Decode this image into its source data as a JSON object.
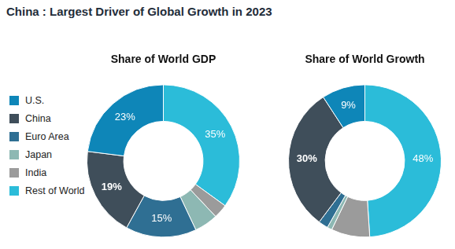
{
  "title": "China : Largest Driver of Global Growth in 2023",
  "chart_data": [
    {
      "type": "doughnut",
      "title": "Share of World GDP",
      "categories": [
        "U.S.",
        "China",
        "Euro Area",
        "Japan",
        "India",
        "Rest of World"
      ],
      "values": [
        23,
        19,
        15,
        5,
        3,
        35
      ],
      "value_labels": [
        "23%",
        "19%",
        "15%",
        null,
        null,
        "35%"
      ],
      "colors": [
        "#0e86b8",
        "#3f4e5a",
        "#2f6f93",
        "#8db8b3",
        "#9b9b9b",
        "#2bbcd9"
      ],
      "data_labels": true,
      "legend": "left"
    },
    {
      "type": "doughnut",
      "title": "Share of World Growth",
      "categories": [
        "U.S.",
        "China",
        "Euro Area",
        "Japan",
        "India",
        "Rest of World"
      ],
      "values": [
        9,
        30,
        2,
        1,
        8,
        48
      ],
      "value_labels": [
        "9%",
        "30%",
        null,
        null,
        null,
        "48%"
      ],
      "colors": [
        "#0e86b8",
        "#3f4e5a",
        "#2f6f93",
        "#8db8b3",
        "#9b9b9b",
        "#2bbcd9"
      ],
      "data_labels": true,
      "legend": "left"
    }
  ]
}
